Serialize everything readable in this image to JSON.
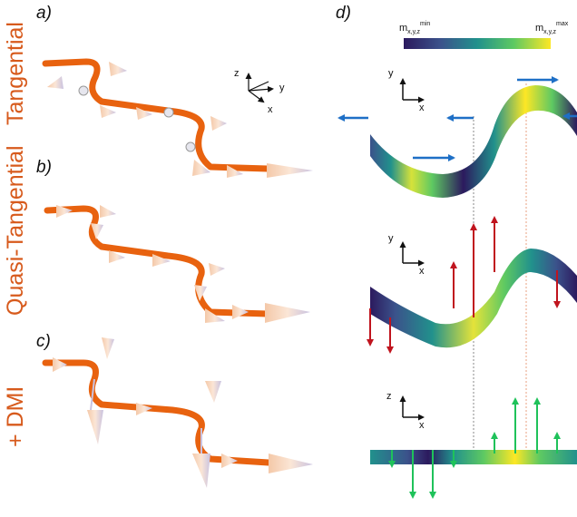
{
  "panels": {
    "a": "a)",
    "b": "b)",
    "c": "c)",
    "d": "d)"
  },
  "side_labels": {
    "top": "Tangential",
    "middle": "Quasi-Tangential",
    "bottom": "+ DMI"
  },
  "axes_3d": {
    "x": "x",
    "y": "y",
    "z": "z"
  },
  "panel_d_axes": {
    "top": {
      "vertical": "y",
      "horizontal": "x"
    },
    "middle": {
      "vertical": "y",
      "horizontal": "x"
    },
    "bottom": {
      "vertical": "z",
      "horizontal": "x"
    }
  },
  "colorbar": {
    "min_label": "m",
    "min_sub": "x,y,z",
    "min_sup": "min",
    "max_label": "m",
    "max_sub": "x,y,z",
    "max_sup": "max",
    "colors": [
      "#2c1a5e",
      "#3b528b",
      "#21918c",
      "#5ec962",
      "#fde725"
    ]
  },
  "colors": {
    "wire": "#e8620f",
    "arrow_blue": "#1e6fc6",
    "arrow_red": "#c0141e",
    "arrow_green": "#1fc25a",
    "label_orange": "#d75a1c"
  }
}
